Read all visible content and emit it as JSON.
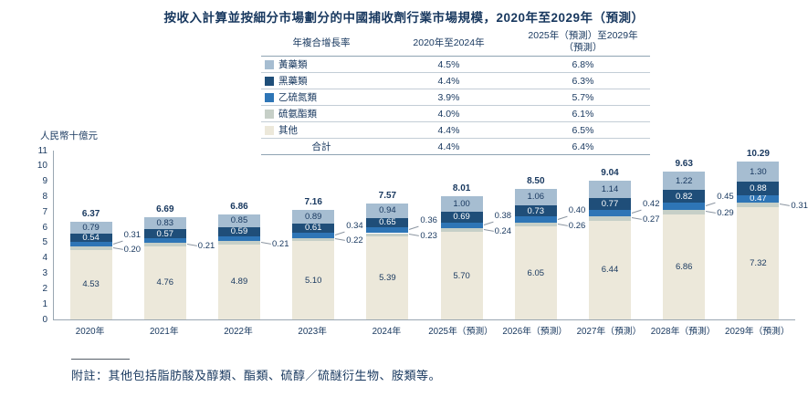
{
  "title": "按收入計算並按細分市場劃分的中國捕收劑行業市場規模，2020年至2029年（預測）",
  "footnote": "附註：其他包括脂肪酸及醇類、酯類、硫醇／硫醚衍生物、胺類等。",
  "colors": {
    "xanthate": "#a6bdd1",
    "dithio": "#1f4e79",
    "blue": "#2e75b6",
    "thiono": "#c6cfc7",
    "others": "#ece8da",
    "text": "#17375e",
    "axis": "#9aa7b2"
  },
  "table": {
    "header": {
      "col_label": "年複合增長率",
      "col_period1": "2020年至2024年",
      "col_period2": "2025年（預測）至2029年（預測）"
    },
    "rows": [
      {
        "label": "黃藥類",
        "color_key": "xanthate",
        "period1": "4.5%",
        "period2": "6.8%"
      },
      {
        "label": "黑藥類",
        "color_key": "dithio",
        "period1": "4.4%",
        "period2": "6.3%"
      },
      {
        "label": "乙硫氮類",
        "color_key": "blue",
        "period1": "3.9%",
        "period2": "5.7%"
      },
      {
        "label": "硫氨酯類",
        "color_key": "thiono",
        "period1": "4.0%",
        "period2": "6.1%"
      },
      {
        "label": "其他",
        "color_key": "others",
        "period1": "4.4%",
        "period2": "6.5%"
      }
    ],
    "total_row": {
      "label": "合計",
      "period1": "4.4%",
      "period2": "6.4%"
    }
  },
  "chart_data": {
    "type": "bar",
    "stacked": true,
    "title": "按收入計算並按細分市場劃分的中國捕收劑行業市場規模，2020年至2029年（預測）",
    "ylabel": "人民幣十億元",
    "ylim": [
      0,
      11
    ],
    "grid": false,
    "legend_position": "table-above",
    "y_ticks": [
      "0",
      "1",
      "2",
      "3",
      "4",
      "5",
      "6",
      "7",
      "8",
      "9",
      "10",
      "11"
    ],
    "categories": [
      "2020年",
      "2021年",
      "2022年",
      "2023年",
      "2024年",
      "2025年（預測）",
      "2026年（預測）",
      "2027年（預測）",
      "2028年（預測）",
      "2029年（預測）"
    ],
    "series": [
      {
        "key": "others",
        "name": "其他",
        "values": [
          4.53,
          4.76,
          4.89,
          5.1,
          5.39,
          5.7,
          6.05,
          6.44,
          6.86,
          7.32
        ]
      },
      {
        "key": "thiono",
        "name": "硫氨酯類",
        "values": [
          0.2,
          0.21,
          0.21,
          0.22,
          0.23,
          0.24,
          0.26,
          0.27,
          0.29,
          0.31
        ]
      },
      {
        "key": "blue",
        "name": "乙硫氮類",
        "values": [
          0.31,
          0.32,
          0.32,
          0.34,
          0.36,
          0.38,
          0.4,
          0.42,
          0.45,
          0.47
        ]
      },
      {
        "key": "dithio",
        "name": "黑藥類",
        "values": [
          0.54,
          0.57,
          0.59,
          0.61,
          0.65,
          0.69,
          0.73,
          0.77,
          0.82,
          0.88
        ]
      },
      {
        "key": "xanthate",
        "name": "黃藥類",
        "values": [
          0.79,
          0.83,
          0.85,
          0.89,
          0.94,
          1.0,
          1.06,
          1.14,
          1.22,
          1.3
        ]
      }
    ],
    "totals": [
      "6.37",
      "6.69",
      "6.86",
      "7.16",
      "7.57",
      "8.01",
      "8.50",
      "9.04",
      "9.63",
      "10.29"
    ],
    "bars": [
      {
        "category": "2020年",
        "total": "6.37",
        "values": {
          "others": 4.53,
          "thiono": 0.2,
          "blue": 0.31,
          "dithio": 0.54,
          "xanthate": 0.79
        },
        "labels": {
          "others": {
            "text": "4.53",
            "pos": "in"
          },
          "thiono": {
            "text": "0.20",
            "pos": "out"
          },
          "blue": {
            "text": "0.31",
            "pos": "out"
          },
          "dithio": {
            "text": "0.54",
            "pos": "in"
          },
          "xanthate": {
            "text": "0.79",
            "pos": "in"
          }
        }
      },
      {
        "category": "2021年",
        "total": "6.69",
        "values": {
          "others": 4.76,
          "thiono": 0.21,
          "blue": 0.32,
          "dithio": 0.57,
          "xanthate": 0.83
        },
        "labels": {
          "others": {
            "text": "4.76",
            "pos": "in"
          },
          "thiono": {
            "text": "0.21",
            "pos": "out"
          },
          "dithio": {
            "text": "0.57",
            "pos": "in"
          },
          "xanthate": {
            "text": "0.83",
            "pos": "in"
          }
        }
      },
      {
        "category": "2022年",
        "total": "6.86",
        "values": {
          "others": 4.89,
          "thiono": 0.21,
          "blue": 0.32,
          "dithio": 0.59,
          "xanthate": 0.85
        },
        "labels": {
          "others": {
            "text": "4.89",
            "pos": "in"
          },
          "thiono": {
            "text": "0.21",
            "pos": "out"
          },
          "dithio": {
            "text": "0.59",
            "pos": "in"
          },
          "xanthate": {
            "text": "0.85",
            "pos": "in"
          }
        }
      },
      {
        "category": "2023年",
        "total": "7.16",
        "values": {
          "others": 5.1,
          "thiono": 0.22,
          "blue": 0.34,
          "dithio": 0.61,
          "xanthate": 0.89
        },
        "labels": {
          "others": {
            "text": "5.10",
            "pos": "in"
          },
          "thiono": {
            "text": "0.22",
            "pos": "out"
          },
          "blue": {
            "text": "0.34",
            "pos": "out"
          },
          "dithio": {
            "text": "0.61",
            "pos": "in"
          },
          "xanthate": {
            "text": "0.89",
            "pos": "in"
          }
        }
      },
      {
        "category": "2024年",
        "total": "7.57",
        "values": {
          "others": 5.39,
          "thiono": 0.23,
          "blue": 0.36,
          "dithio": 0.65,
          "xanthate": 0.94
        },
        "labels": {
          "others": {
            "text": "5.39",
            "pos": "in"
          },
          "thiono": {
            "text": "0.23",
            "pos": "out"
          },
          "blue": {
            "text": "0.36",
            "pos": "out"
          },
          "dithio": {
            "text": "0.65",
            "pos": "in"
          },
          "xanthate": {
            "text": "0.94",
            "pos": "in"
          }
        }
      },
      {
        "category": "2025年（預測）",
        "total": "8.01",
        "values": {
          "others": 5.7,
          "thiono": 0.24,
          "blue": 0.38,
          "dithio": 0.69,
          "xanthate": 1.0
        },
        "labels": {
          "others": {
            "text": "5.70",
            "pos": "in"
          },
          "thiono": {
            "text": "0.24",
            "pos": "out"
          },
          "blue": {
            "text": "0.38",
            "pos": "out"
          },
          "dithio": {
            "text": "0.69",
            "pos": "in"
          },
          "xanthate": {
            "text": "1.00",
            "pos": "in"
          }
        }
      },
      {
        "category": "2026年（預測）",
        "total": "8.50",
        "values": {
          "others": 6.05,
          "thiono": 0.26,
          "blue": 0.4,
          "dithio": 0.73,
          "xanthate": 1.06
        },
        "labels": {
          "others": {
            "text": "6.05",
            "pos": "in"
          },
          "thiono": {
            "text": "0.26",
            "pos": "out"
          },
          "blue": {
            "text": "0.40",
            "pos": "out"
          },
          "dithio": {
            "text": "0.73",
            "pos": "in"
          },
          "xanthate": {
            "text": "1.06",
            "pos": "in"
          }
        }
      },
      {
        "category": "2027年（預測）",
        "total": "9.04",
        "values": {
          "others": 6.44,
          "thiono": 0.27,
          "blue": 0.42,
          "dithio": 0.77,
          "xanthate": 1.14
        },
        "labels": {
          "others": {
            "text": "6.44",
            "pos": "in"
          },
          "thiono": {
            "text": "0.27",
            "pos": "out"
          },
          "blue": {
            "text": "0.42",
            "pos": "out"
          },
          "dithio": {
            "text": "0.77",
            "pos": "in"
          },
          "xanthate": {
            "text": "1.14",
            "pos": "in"
          }
        }
      },
      {
        "category": "2028年（預測）",
        "total": "9.63",
        "values": {
          "others": 6.86,
          "thiono": 0.29,
          "blue": 0.45,
          "dithio": 0.82,
          "xanthate": 1.22
        },
        "labels": {
          "others": {
            "text": "6.86",
            "pos": "in"
          },
          "thiono": {
            "text": "0.29",
            "pos": "out"
          },
          "blue": {
            "text": "0.45",
            "pos": "out"
          },
          "dithio": {
            "text": "0.82",
            "pos": "in"
          },
          "xanthate": {
            "text": "1.22",
            "pos": "in"
          }
        }
      },
      {
        "category": "2029年（預測）",
        "total": "10.29",
        "values": {
          "others": 7.32,
          "thiono": 0.31,
          "blue": 0.47,
          "dithio": 0.88,
          "xanthate": 1.3
        },
        "labels": {
          "others": {
            "text": "7.32",
            "pos": "in"
          },
          "thiono": {
            "text": "0.31",
            "pos": "out"
          },
          "blue": {
            "text": "0.47",
            "pos": "in"
          },
          "dithio": {
            "text": "0.88",
            "pos": "in"
          },
          "xanthate": {
            "text": "1.30",
            "pos": "in"
          }
        }
      }
    ]
  }
}
